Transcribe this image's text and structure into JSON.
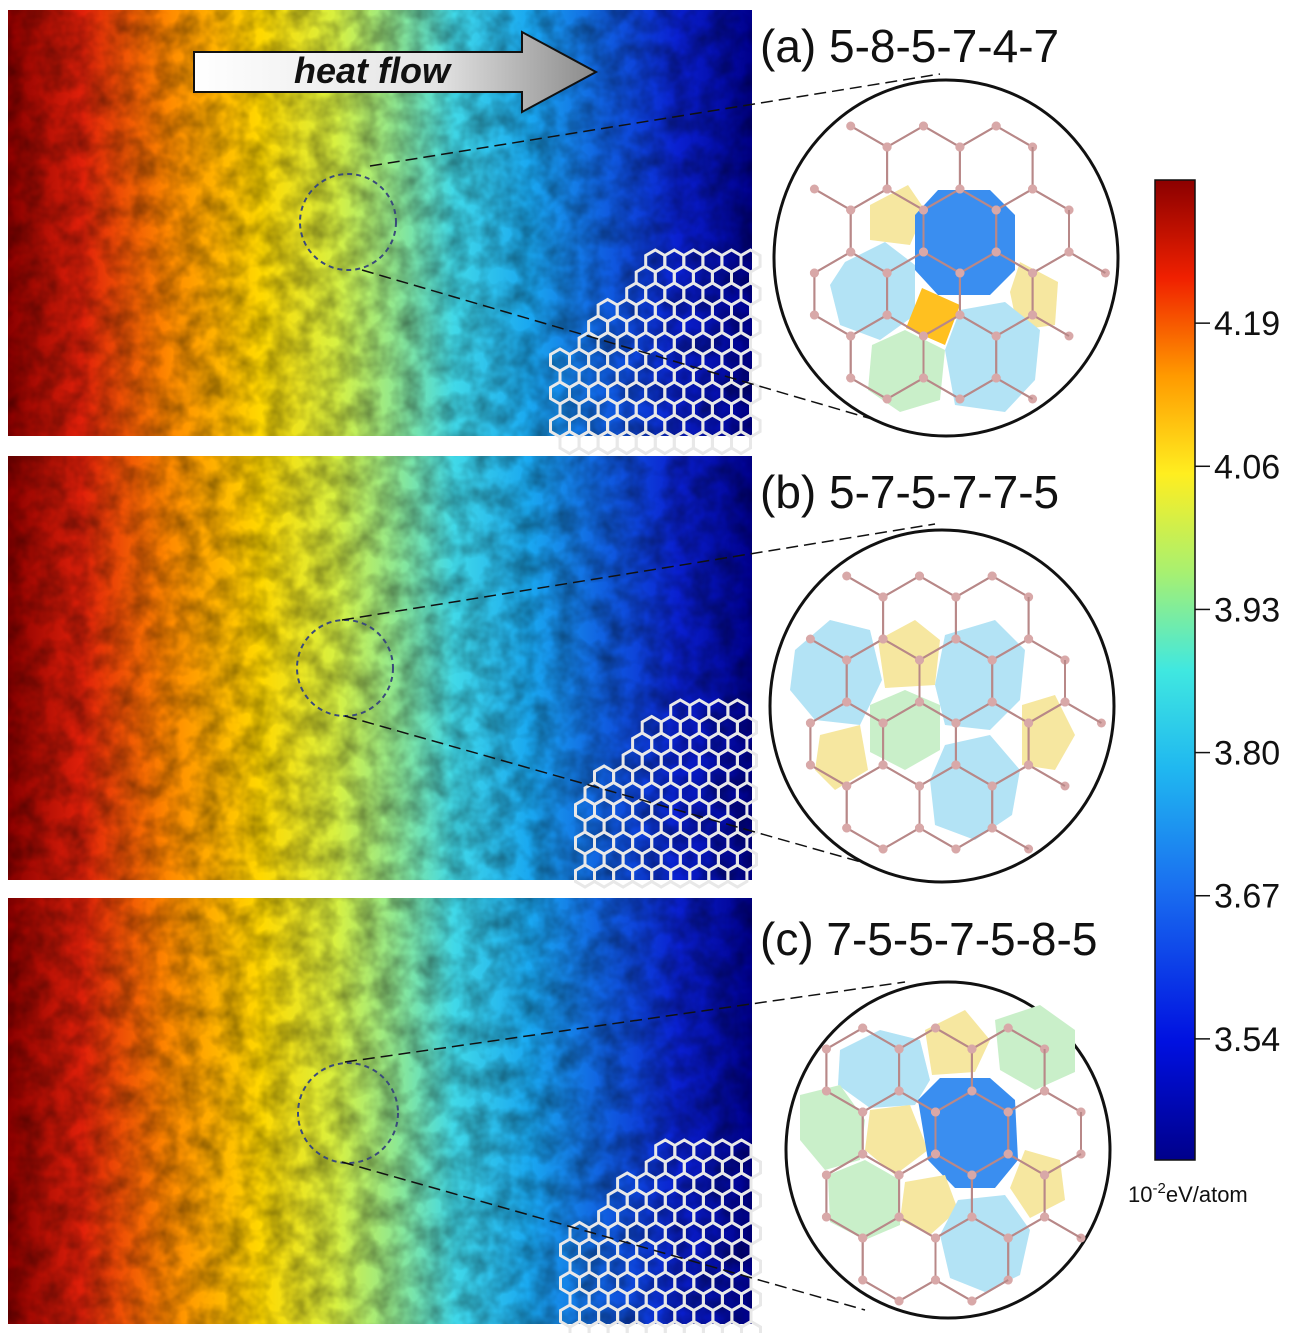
{
  "figure": {
    "heat_flow_label": "heat flow",
    "panels": [
      {
        "id": "a",
        "label": "(a) 5-8-5-7-4-7"
      },
      {
        "id": "b",
        "label": "(b) 5-7-5-7-7-5"
      },
      {
        "id": "c",
        "label": "(c) 7-5-5-7-5-8-5"
      }
    ],
    "colorbar": {
      "ticks": [
        "4.19",
        "4.06",
        "3.93",
        "3.80",
        "3.67",
        "3.54"
      ],
      "unit_base": "10",
      "unit_exp": "-2",
      "unit_rest": "eV/atom",
      "min": 3.43,
      "max": 4.32
    }
  },
  "colors": {
    "hot": "#8b0000",
    "cold": "#00008b",
    "pentagon": "#f6e7a0",
    "heptagon": "#b3e3f5",
    "octagon": "#3a8ef0",
    "square": "#ffc020",
    "hexagon_green": "#c9efc9",
    "bond": "#b88888",
    "atom": "#d8a8a8"
  }
}
